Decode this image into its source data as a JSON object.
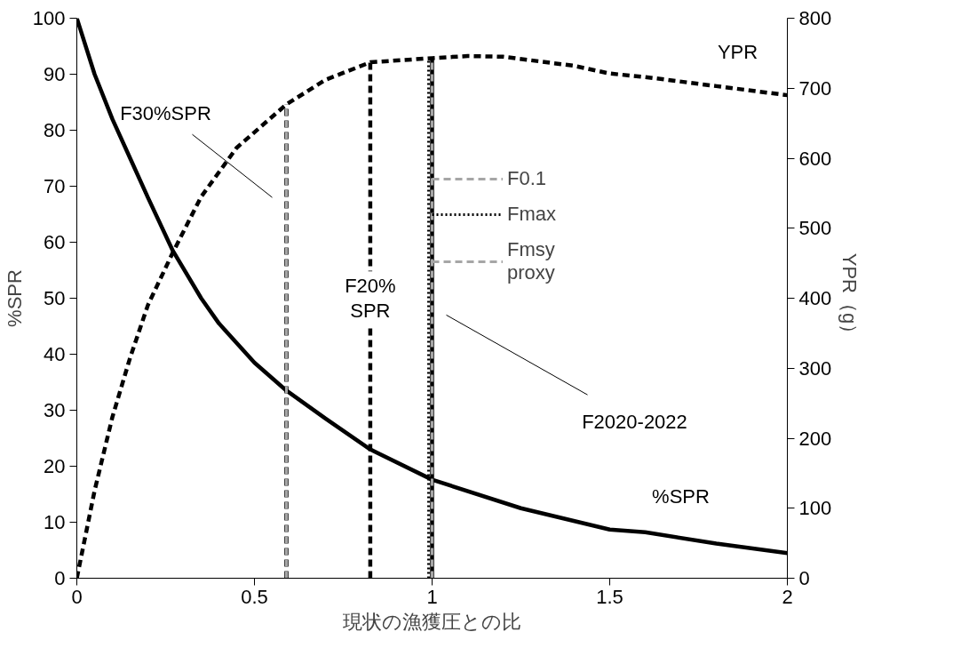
{
  "chart_data": {
    "type": "line",
    "xlabel": "現状の漁獲圧との比",
    "ylabel": "%SPR",
    "y2label": "YPR（g）",
    "xlim": [
      0,
      2
    ],
    "xticks": [
      0,
      {
        "value": 0.5,
        "label": "0.5"
      },
      1,
      {
        "value": 1.5,
        "label": "1.5"
      },
      2
    ],
    "ylim": [
      0,
      100
    ],
    "yticks": [
      0,
      10,
      20,
      30,
      40,
      50,
      60,
      70,
      80,
      90,
      100
    ],
    "y2lim": [
      0,
      800
    ],
    "y2ticks": [
      0,
      100,
      200,
      300,
      400,
      500,
      600,
      700,
      800
    ],
    "grid": false,
    "legend": "right",
    "series": [
      {
        "color": "#000000",
        "line_style": "solid",
        "x": [
          0,
          0.05,
          0.1,
          0.15,
          0.2,
          0.27,
          0.35,
          0.4,
          0.5,
          0.59,
          0.7,
          0.826,
          1.0,
          1.25,
          1.5,
          1.6,
          1.8,
          2.0
        ],
        "values": [
          100,
          90,
          82,
          75,
          68,
          58.5,
          50,
          45.5,
          38.5,
          33.5,
          28.5,
          23,
          17.6,
          12.5,
          8.7,
          8.2,
          6.2,
          4.5
        ]
      },
      {
        "color": "#000000",
        "line_style": "dashed",
        "axis": "y2",
        "x": [
          0,
          0.05,
          0.1,
          0.15,
          0.2,
          0.27,
          0.35,
          0.45,
          0.59,
          0.7,
          0.826,
          1.0,
          1.1,
          1.2,
          1.4,
          1.5,
          1.6,
          1.8,
          2.0
        ],
        "values": [
          0,
          125,
          230,
          315,
          390,
          465,
          545,
          615,
          677,
          712,
          737,
          743,
          746,
          745,
          732,
          721,
          716,
          703,
          690
        ]
      },
      {
        "color": "#000000",
        "line_style": "dashed",
        "axis": "y2",
        "x": [
          0.59,
          0.59
        ],
        "values": [
          0,
          677
        ]
      },
      {
        "name": "F0.1",
        "color": "#a6a6a6",
        "line_style": "dashed",
        "axis": "y2",
        "x": [
          0.59,
          0.59
        ],
        "values": [
          0,
          677
        ]
      },
      {
        "color": "#000000",
        "line_style": "dashed",
        "axis": "y2",
        "x": [
          0.826,
          0.826
        ],
        "values": [
          0,
          737
        ]
      },
      {
        "color": "#000000",
        "line_style": "solid",
        "axis": "y2",
        "x": [
          1.0,
          1.0
        ],
        "values": [
          0,
          743
        ]
      },
      {
        "name": "Fmax",
        "color": "#000000",
        "line_style": "dotted",
        "axis": "y2",
        "x": [
          0.99,
          0.99
        ],
        "values": [
          0,
          743
        ]
      },
      {
        "name": "Fmsy\nproxy",
        "color": "#a6a6a6",
        "line_style": "dashed",
        "axis": "y2",
        "x": [
          1.0,
          1.0
        ],
        "values": [
          0,
          743
        ]
      }
    ],
    "annotations": [
      "F30%SPR",
      "F20%\nSPR",
      "F2020-2022",
      "%SPR",
      "YPR"
    ]
  }
}
